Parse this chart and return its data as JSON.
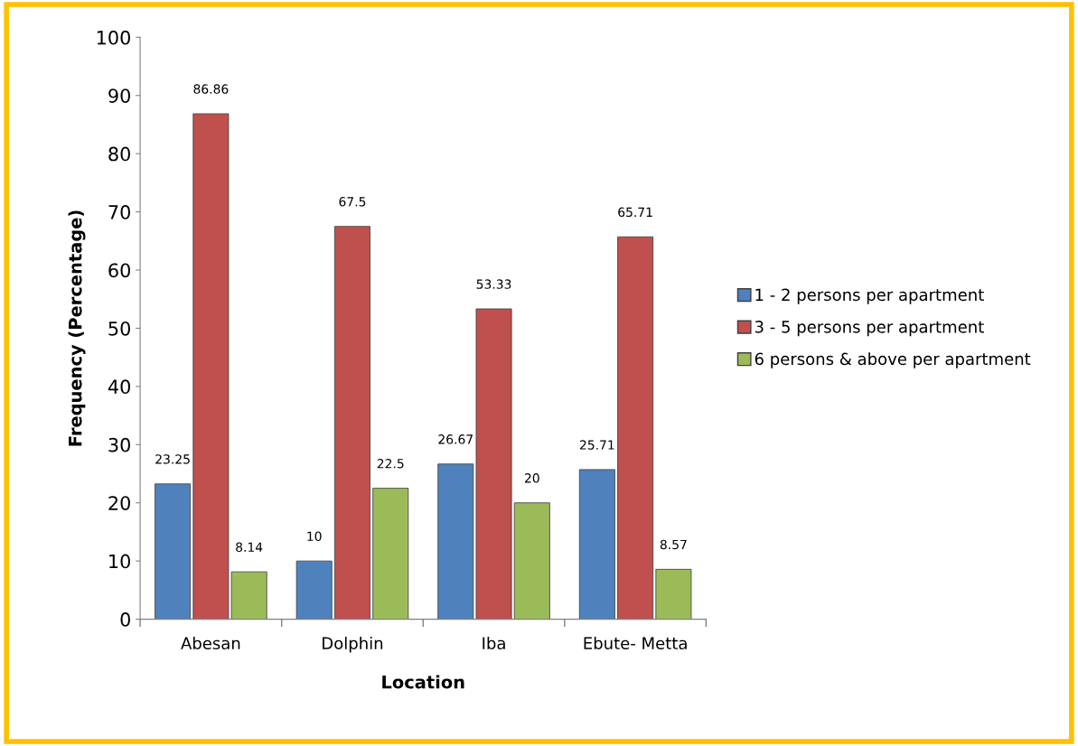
{
  "chart_data": {
    "type": "bar",
    "xlabel": "Location",
    "ylabel": "Frequency (Percentage)",
    "categories": [
      "Abesan",
      "Dolphin",
      "Iba",
      "Ebute- Metta"
    ],
    "series": [
      {
        "name": "1 - 2 persons per apartment",
        "color": "#4f81bd",
        "values": [
          23.25,
          10,
          26.67,
          25.71
        ]
      },
      {
        "name": "3 - 5 persons per apartment",
        "color": "#c0504d",
        "values": [
          86.86,
          67.5,
          53.33,
          65.71
        ]
      },
      {
        "name": "6 persons & above per apartment",
        "color": "#9bbb59",
        "values": [
          8.14,
          22.5,
          20,
          8.57
        ]
      }
    ],
    "ylim": [
      0,
      100
    ],
    "yticks": [
      0,
      10,
      20,
      30,
      40,
      50,
      60,
      70,
      80,
      90,
      100
    ],
    "data_labels": true,
    "grid": false,
    "legend": "right"
  }
}
